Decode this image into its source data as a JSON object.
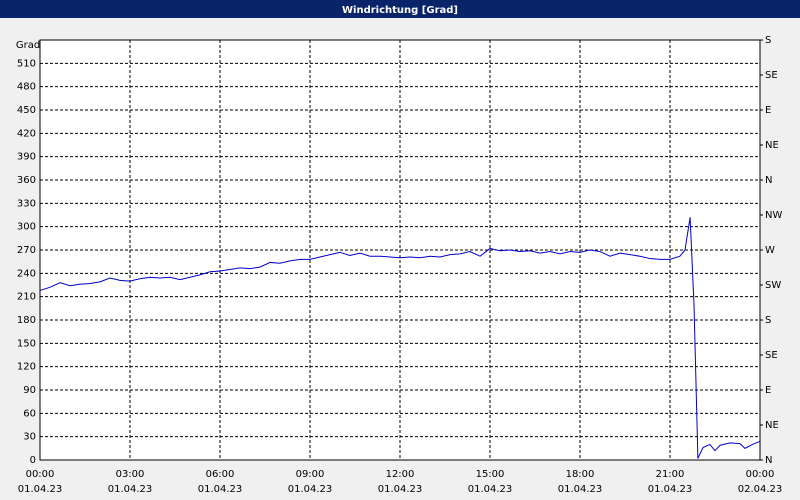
{
  "chart_data": {
    "type": "line",
    "title": "Windrichtung [Grad]",
    "y_label": "Grad",
    "x": [
      0,
      0.33,
      0.67,
      1,
      1.33,
      1.67,
      2,
      2.33,
      2.67,
      3,
      3.33,
      3.67,
      4,
      4.33,
      4.67,
      5,
      5.33,
      5.67,
      6,
      6.33,
      6.67,
      7,
      7.33,
      7.67,
      8,
      8.33,
      8.67,
      9,
      9.33,
      9.67,
      10,
      10.33,
      10.67,
      11,
      11.33,
      11.67,
      12,
      12.33,
      12.67,
      13,
      13.33,
      13.67,
      14,
      14.33,
      14.67,
      15,
      15.33,
      15.67,
      16,
      16.33,
      16.67,
      17,
      17.33,
      17.67,
      18,
      18.33,
      18.67,
      19,
      19.33,
      19.67,
      20,
      20.33,
      20.67,
      21,
      21.33,
      21.5,
      21.67,
      21.8,
      21.93,
      22.1,
      22.33,
      22.5,
      22.67,
      23,
      23.33,
      23.5,
      23.75,
      24
    ],
    "series": [
      {
        "color": "#0000cc",
        "values": [
          218,
          222,
          228,
          224,
          226,
          227,
          229,
          234,
          231,
          230,
          233,
          235,
          234,
          235,
          232,
          235,
          238,
          242,
          243,
          245,
          247,
          246,
          248,
          254,
          253,
          256,
          258,
          258,
          261,
          264,
          267,
          263,
          266,
          262,
          262,
          261,
          260,
          261,
          260,
          262,
          261,
          264,
          265,
          268,
          262,
          272,
          269,
          270,
          268,
          269,
          266,
          268,
          265,
          268,
          267,
          270,
          268,
          262,
          266,
          264,
          262,
          259,
          258,
          258,
          262,
          270,
          312,
          200,
          2,
          16,
          20,
          12,
          19,
          22,
          21,
          15,
          20,
          24
        ]
      }
    ],
    "xlim": [
      0,
      24
    ],
    "xticks": [
      {
        "value": 0,
        "label": "00:00",
        "date": "01.04.23"
      },
      {
        "value": 3,
        "label": "03:00",
        "date": "01.04.23"
      },
      {
        "value": 6,
        "label": "06:00",
        "date": "01.04.23"
      },
      {
        "value": 9,
        "label": "09:00",
        "date": "01.04.23"
      },
      {
        "value": 12,
        "label": "12:00",
        "date": "01.04.23"
      },
      {
        "value": 15,
        "label": "15:00",
        "date": "01.04.23"
      },
      {
        "value": 18,
        "label": "18:00",
        "date": "01.04.23"
      },
      {
        "value": 21,
        "label": "21:00",
        "date": "01.04.23"
      },
      {
        "value": 24,
        "label": "00:00",
        "date": "02.04.23"
      }
    ],
    "ylim": [
      0,
      540
    ],
    "yticks": [
      0,
      30,
      60,
      90,
      120,
      150,
      180,
      210,
      240,
      270,
      300,
      330,
      360,
      390,
      420,
      450,
      480,
      510
    ],
    "y2lim": [
      0,
      540
    ],
    "y2ticks": [
      {
        "value": 0,
        "label": "N"
      },
      {
        "value": 45,
        "label": "NE"
      },
      {
        "value": 90,
        "label": "E"
      },
      {
        "value": 135,
        "label": "SE"
      },
      {
        "value": 180,
        "label": "S"
      },
      {
        "value": 225,
        "label": "SW"
      },
      {
        "value": 270,
        "label": "W"
      },
      {
        "value": 315,
        "label": "NW"
      },
      {
        "value": 360,
        "label": "N"
      },
      {
        "value": 405,
        "label": "NE"
      },
      {
        "value": 450,
        "label": "E"
      },
      {
        "value": 495,
        "label": "SE"
      },
      {
        "value": 540,
        "label": "S"
      }
    ],
    "grid": true
  }
}
